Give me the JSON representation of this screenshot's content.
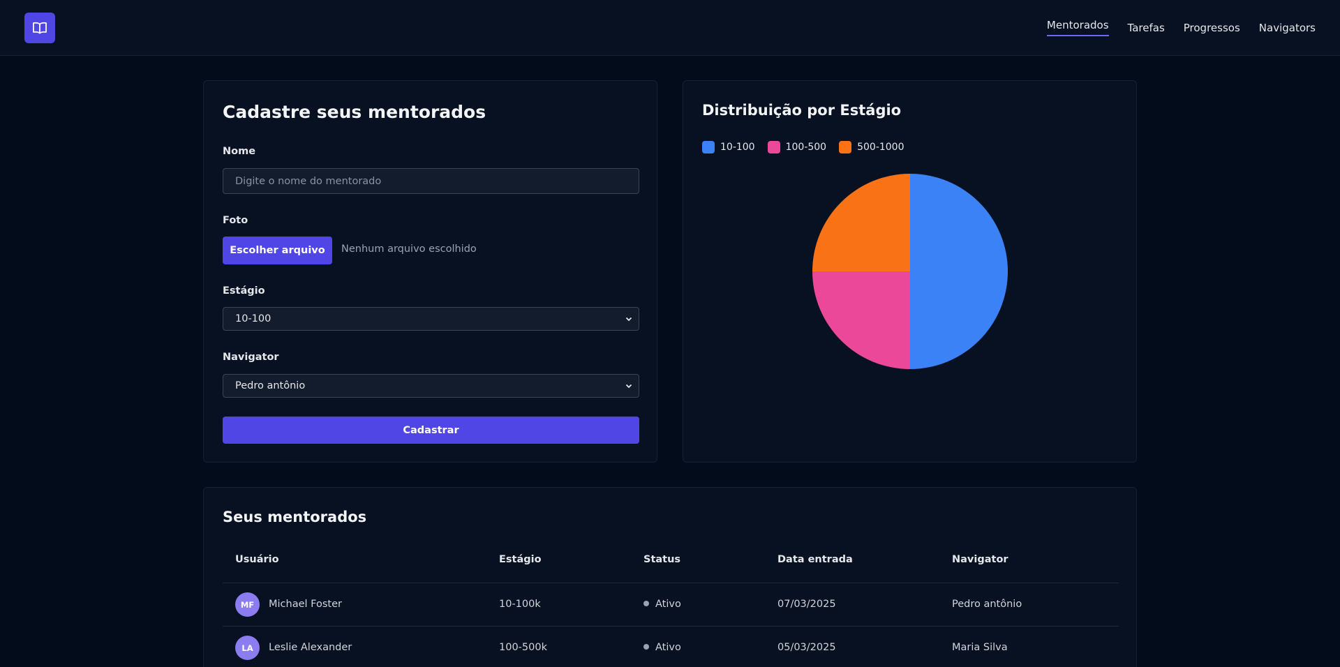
{
  "header": {
    "nav": [
      {
        "label": "Mentorados"
      },
      {
        "label": "Tarefas"
      },
      {
        "label": "Progressos"
      },
      {
        "label": "Navigators"
      }
    ],
    "active_nav": "Mentorados"
  },
  "form": {
    "title": "Cadastre seus mentorados",
    "name_label": "Nome",
    "name_placeholder": "Digite o nome do mentorado",
    "photo_label": "Foto",
    "file_button": "Escolher arquivo",
    "file_status": "Nenhum arquivo escolhido",
    "stage_label": "Estágio",
    "stage_value": "10-100",
    "navigator_label": "Navigator",
    "navigator_value": "Pedro antônio",
    "submit_label": "Cadastrar"
  },
  "chart_data": {
    "type": "pie",
    "title": "Distribuição por Estágio",
    "categories": [
      "10-100",
      "100-500",
      "500-1000"
    ],
    "values": [
      2,
      1,
      1
    ],
    "colors": [
      "#3b82f6",
      "#ec4899",
      "#f97316"
    ],
    "legend_position": "top-left"
  },
  "table": {
    "title": "Seus mentorados",
    "columns": [
      "Usuário",
      "Estágio",
      "Status",
      "Data entrada",
      "Navigator"
    ],
    "rows": [
      {
        "initials": "MF",
        "name": "Michael Foster",
        "stage": "10-100k",
        "status": "Ativo",
        "date": "07/03/2025",
        "navigator": "Pedro antônio"
      },
      {
        "initials": "LA",
        "name": "Leslie Alexander",
        "stage": "100-500k",
        "status": "Ativo",
        "date": "05/03/2025",
        "navigator": "Maria Silva"
      }
    ]
  }
}
